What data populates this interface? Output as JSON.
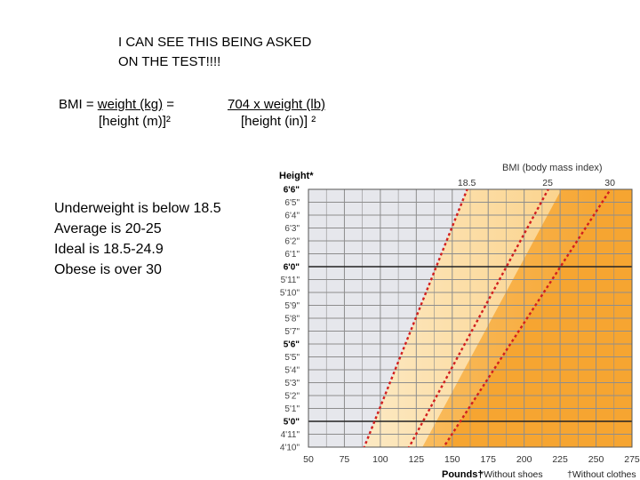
{
  "note": {
    "line1": "I CAN SEE THIS BEING ASKED",
    "line2": "ON THE TEST!!!!"
  },
  "formula_metric": {
    "prefix": "BMI = ",
    "numerator": "weight (kg)",
    "suffix": " =",
    "denominator": "[height (m)]²"
  },
  "formula_imperial": {
    "numerator": "704 x weight (lb)",
    "denominator": "[height (in)] ²"
  },
  "facts": [
    "Underweight is below 18.5",
    "Average is 20-25",
    "Ideal is 18.5-24.9",
    "Obese is over 30"
  ],
  "chart_data": {
    "type": "line",
    "y_axis_title": "Height*",
    "x_axis_title": "Pounds†",
    "top_title": "BMI (body mass index)",
    "footnote_shoes": "*Without shoes",
    "footnote_clothes": "†Without clothes",
    "y_ticks": [
      {
        "label": "4'11\"",
        "inches": 59,
        "bold": false
      },
      {
        "label": "4'10\"",
        "inches": 58,
        "bold": false
      },
      {
        "label": "5'0\"",
        "inches": 60,
        "bold": true
      },
      {
        "label": "5'1\"",
        "inches": 61,
        "bold": false
      },
      {
        "label": "5'2\"",
        "inches": 62,
        "bold": false
      },
      {
        "label": "5'3\"",
        "inches": 63,
        "bold": false
      },
      {
        "label": "5'4\"",
        "inches": 64,
        "bold": false
      },
      {
        "label": "5'5\"",
        "inches": 65,
        "bold": false
      },
      {
        "label": "5'6\"",
        "inches": 66,
        "bold": true
      },
      {
        "label": "5'7\"",
        "inches": 67,
        "bold": false
      },
      {
        "label": "5'8\"",
        "inches": 68,
        "bold": false
      },
      {
        "label": "5'9\"",
        "inches": 69,
        "bold": false
      },
      {
        "label": "5'10\"",
        "inches": 70,
        "bold": false
      },
      {
        "label": "5'11\"",
        "inches": 71,
        "bold": false
      },
      {
        "label": "6'0\"",
        "inches": 72,
        "bold": true
      },
      {
        "label": "6'1\"",
        "inches": 73,
        "bold": false
      },
      {
        "label": "6'2\"",
        "inches": 74,
        "bold": false
      },
      {
        "label": "6'3\"",
        "inches": 75,
        "bold": false
      },
      {
        "label": "6'4\"",
        "inches": 76,
        "bold": false
      },
      {
        "label": "6'5\"",
        "inches": 77,
        "bold": false
      },
      {
        "label": "6'6\"",
        "inches": 78,
        "bold": true
      }
    ],
    "x_ticks": [
      50,
      75,
      100,
      125,
      150,
      175,
      200,
      225,
      250,
      275
    ],
    "xlim": [
      50,
      275
    ],
    "ylim_inches": [
      58,
      78
    ],
    "thick_rows_inches": [
      60,
      72
    ],
    "series": [
      {
        "name": "18.5",
        "bmi": 18.5
      },
      {
        "name": "25",
        "bmi": 25
      },
      {
        "name": "30",
        "bmi": 30
      }
    ],
    "colors": {
      "underweight_fill": "#e6e7ec",
      "normal_fill_light": "#fdf0d4",
      "normal_fill_dark": "#fbd38c",
      "overweight_fill_light": "#fbc977",
      "overweight_fill_dark": "#f6a531",
      "line": "#d11f1f",
      "grid": "#8d8d8d",
      "heavy_grid": "#222222"
    }
  }
}
